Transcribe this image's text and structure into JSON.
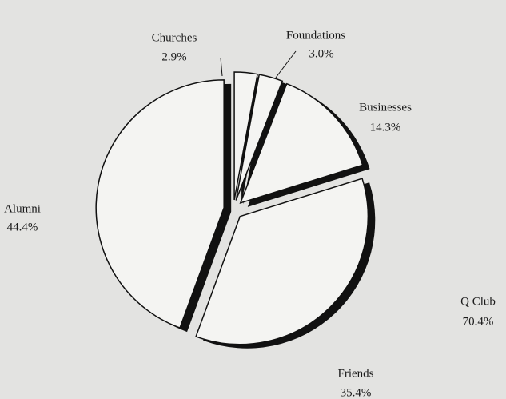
{
  "chart_data": {
    "type": "pie",
    "categories": [
      "Churches",
      "Foundations",
      "Businesses",
      "Friends",
      "Alumni"
    ],
    "values": [
      2.9,
      3.0,
      14.3,
      35.4,
      44.4
    ],
    "value_labels": [
      "2.9%",
      "3.0%",
      "14.3%",
      "35.4%",
      "44.4%"
    ],
    "annotations": [
      {
        "text": "Q Club",
        "value": 70.4,
        "value_label": "70.4%"
      }
    ]
  }
}
